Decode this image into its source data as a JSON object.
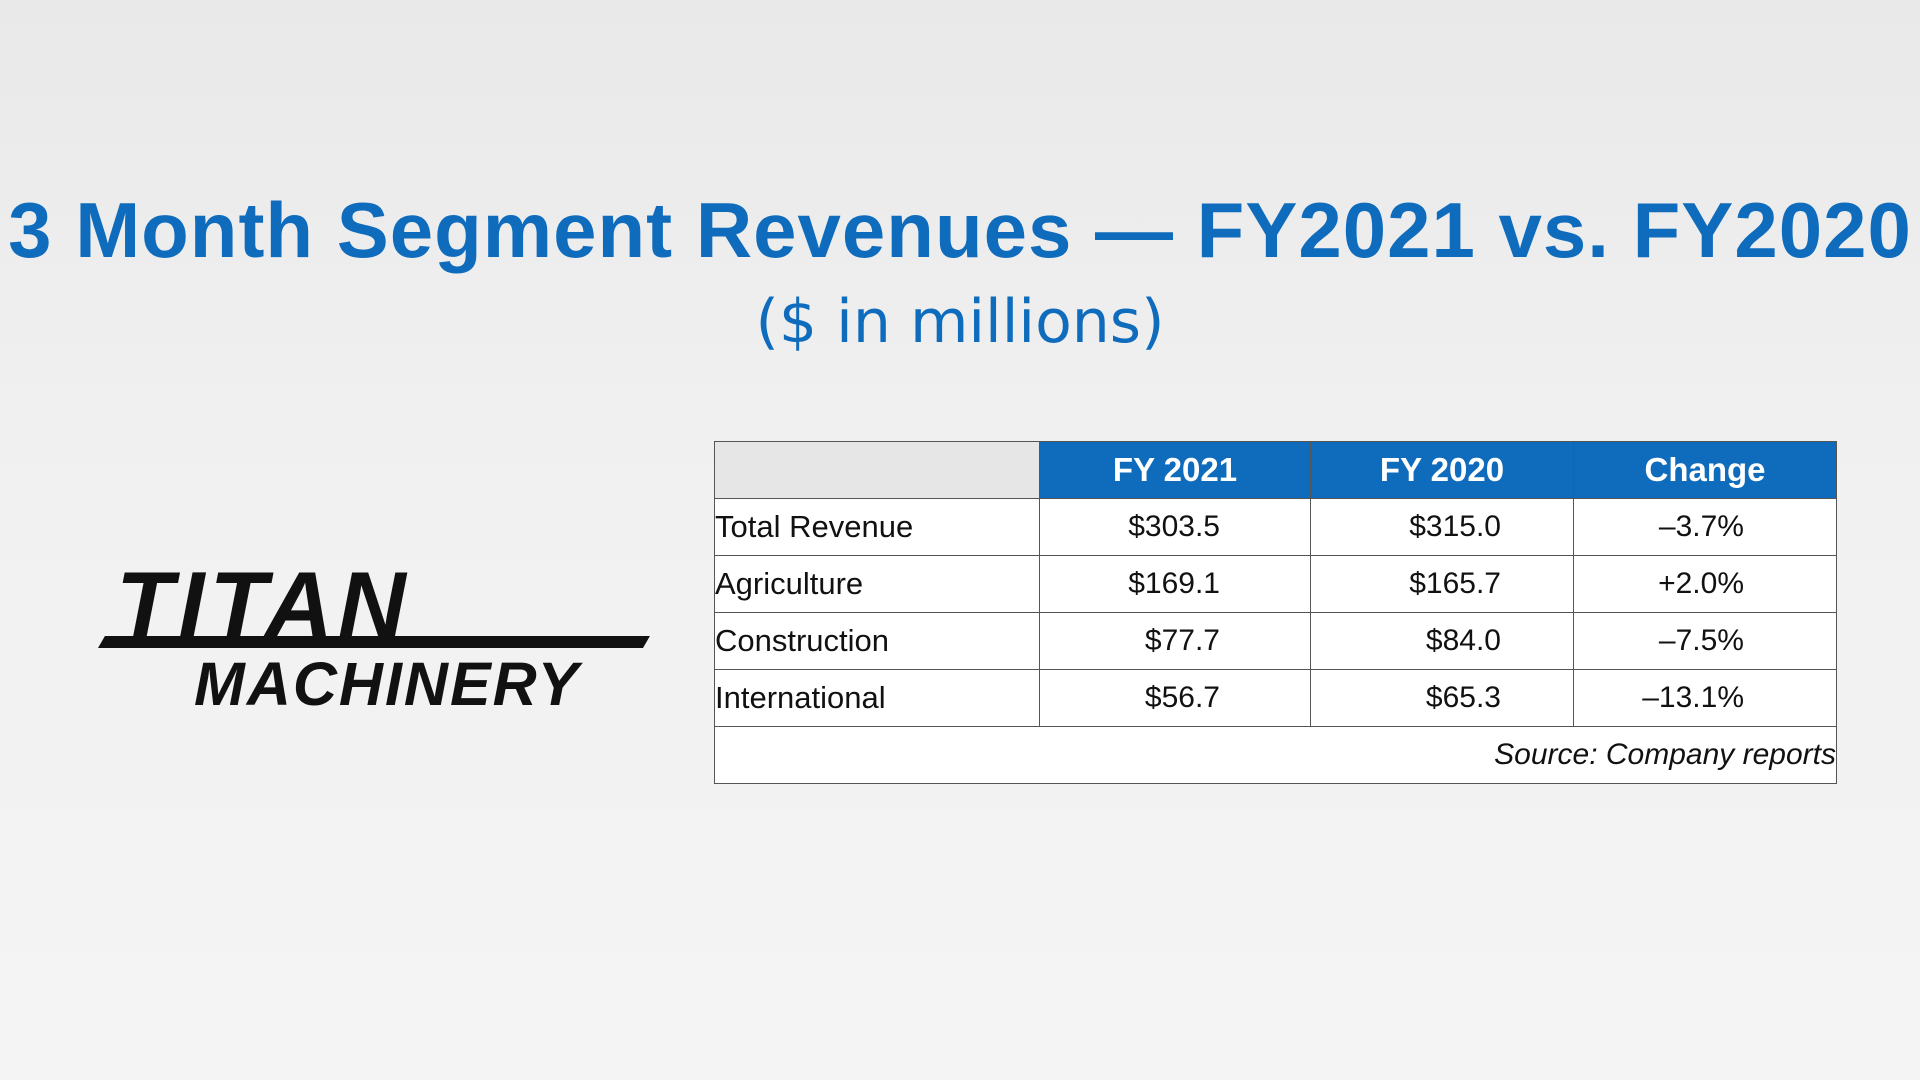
{
  "header": {
    "title": "3 Month Segment Revenues — FY2021 vs. FY2020",
    "subtitle": "($ in millions)"
  },
  "logo": {
    "line1": "TITAN",
    "line2": "MACHINERY"
  },
  "chart_data": {
    "type": "table",
    "columns": [
      "FY 2021",
      "FY 2020",
      "Change"
    ],
    "rows": [
      {
        "label": "Total Revenue",
        "values": [
          "$303.5",
          "$315.0",
          "–3.7%"
        ]
      },
      {
        "label": "Agriculture",
        "values": [
          "$169.1",
          "$165.7",
          "+2.0%"
        ]
      },
      {
        "label": "Construction",
        "values": [
          "$77.7",
          "$84.0",
          "–7.5%"
        ]
      },
      {
        "label": "International",
        "values": [
          "$56.7",
          "$65.3",
          "–13.1%"
        ]
      }
    ],
    "source": "Source: Company reports"
  },
  "colors": {
    "accent": "#0f6cbd",
    "header_text": "#ffffff",
    "corner_cell": "#e6e6e6"
  }
}
